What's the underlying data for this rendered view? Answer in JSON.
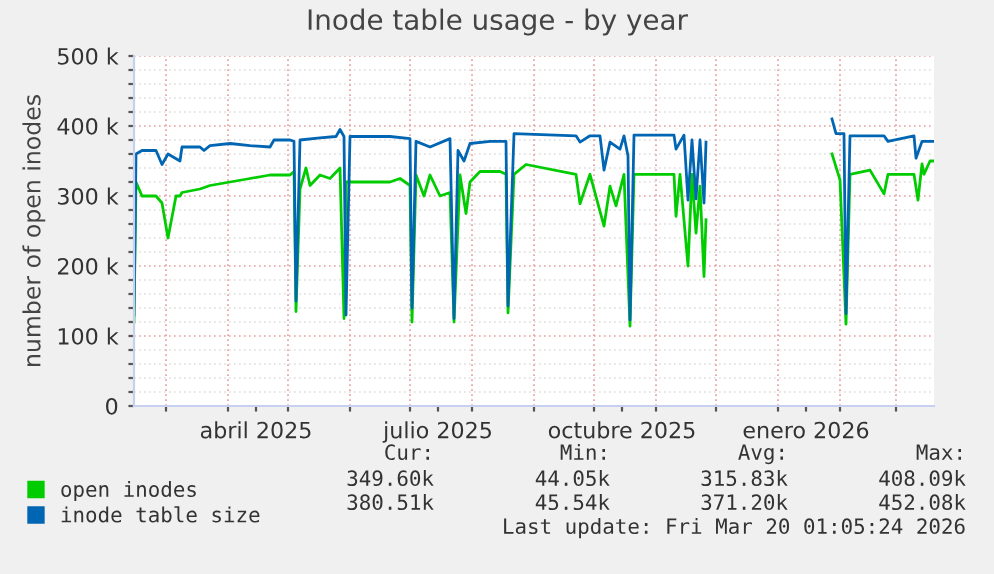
{
  "chart_data": {
    "type": "line",
    "title": "Inode table usage - by year",
    "ylabel": "number of open inodes",
    "xlim": [
      "2025-02-13",
      "2026-03-20"
    ],
    "xticks": [
      {
        "value": "2025-03-01",
        "label": null
      },
      {
        "value": "2025-04-01",
        "label": null
      },
      {
        "value": "2025-04-15",
        "label": "abril 2025"
      },
      {
        "value": "2025-05-01",
        "label": null
      },
      {
        "value": "2025-06-01",
        "label": null
      },
      {
        "value": "2025-07-01",
        "label": null
      },
      {
        "value": "2025-07-15",
        "label": "julio 2025"
      },
      {
        "value": "2025-08-01",
        "label": null
      },
      {
        "value": "2025-09-01",
        "label": null
      },
      {
        "value": "2025-10-01",
        "label": null
      },
      {
        "value": "2025-10-15",
        "label": "octubre 2025"
      },
      {
        "value": "2025-11-01",
        "label": null
      },
      {
        "value": "2025-12-01",
        "label": null
      },
      {
        "value": "2026-01-01",
        "label": null
      },
      {
        "value": "2026-01-15",
        "label": "enero 2026"
      },
      {
        "value": "2026-02-01",
        "label": null
      },
      {
        "value": "2026-03-01",
        "label": null
      }
    ],
    "ylim": [
      0,
      500000
    ],
    "yticks": [
      0,
      {
        "value": 20000,
        "label": null
      },
      {
        "value": 40000,
        "label": null
      },
      {
        "value": 60000,
        "label": null
      },
      {
        "value": 80000,
        "label": null
      },
      {
        "value": 100000,
        "label": "100 k"
      },
      {
        "value": 120000,
        "label": null
      },
      {
        "value": 140000,
        "label": null
      },
      {
        "value": 160000,
        "label": null
      },
      {
        "value": 180000,
        "label": null
      },
      {
        "value": 200000,
        "label": "200 k"
      },
      {
        "value": 220000,
        "label": null
      },
      {
        "value": 240000,
        "label": null
      },
      {
        "value": 260000,
        "label": null
      },
      {
        "value": 280000,
        "label": null
      },
      {
        "value": 300000,
        "label": "300 k"
      },
      {
        "value": 320000,
        "label": null
      },
      {
        "value": 340000,
        "label": null
      },
      {
        "value": 360000,
        "label": null
      },
      {
        "value": 380000,
        "label": null
      },
      {
        "value": 400000,
        "label": "400 k"
      },
      {
        "value": 420000,
        "label": null
      },
      {
        "value": 440000,
        "label": null
      },
      {
        "value": 460000,
        "label": null
      },
      {
        "value": 480000,
        "label": null
      },
      {
        "value": 500000,
        "label": "500 k"
      }
    ],
    "grid": true,
    "legend": "bottom",
    "marker": "none",
    "line_style": "solid",
    "series": [
      {
        "name": "open inodes",
        "color": "#00cc00",
        "x": [
          "2025-02-13",
          "2025-02-14",
          "2025-02-17",
          "2025-02-24",
          "2025-02-27",
          "2025-03-02",
          "2025-03-06",
          "2025-03-08",
          "2025-03-09",
          "2025-03-18",
          "2025-03-23",
          "2025-04-02",
          "2025-04-12",
          "2025-04-22",
          "2025-04-24",
          "2025-05-02",
          "2025-05-04",
          "2025-05-05",
          "2025-05-07",
          "2025-05-10",
          "2025-05-12",
          "2025-05-17",
          "2025-05-22",
          "2025-05-27",
          "2025-05-29",
          "2025-05-30",
          "2025-06-01",
          "2025-06-11",
          "2025-06-21",
          "2025-06-26",
          "2025-07-01",
          "2025-07-02",
          "2025-07-04",
          "2025-07-08",
          "2025-07-11",
          "2025-07-16",
          "2025-07-21",
          "2025-07-23",
          "2025-07-26",
          "2025-07-29",
          "2025-07-31",
          "2025-08-05",
          "2025-08-15",
          "2025-08-18",
          "2025-08-19",
          "2025-08-22",
          "2025-08-28",
          "2025-09-22",
          "2025-09-24",
          "2025-09-29",
          "2025-10-06",
          "2025-10-09",
          "2025-10-12",
          "2025-10-16",
          "2025-10-19",
          "2025-10-21",
          "2025-11-10",
          "2025-11-11",
          "2025-11-13",
          "2025-11-17",
          "2025-11-19",
          "2025-11-21",
          "2025-11-23",
          "2025-11-25",
          "2025-11-26",
          "2025-12-28",
          "2026-01-28",
          "2026-02-01",
          "2026-02-04",
          "2026-02-06",
          "2026-02-16",
          "2026-02-23",
          "2026-02-25",
          "2026-03-10",
          "2026-03-12",
          "2026-03-14",
          "2026-03-15",
          "2026-03-18",
          "2026-03-20"
        ],
        "values": [
          120000,
          320000,
          300000,
          300000,
          290000,
          240000,
          300000,
          300000,
          305000,
          310000,
          315000,
          320000,
          325000,
          330000,
          330000,
          330000,
          335000,
          135000,
          310000,
          340000,
          315000,
          330000,
          325000,
          340000,
          125000,
          320000,
          320000,
          320000,
          320000,
          325000,
          315000,
          120000,
          330000,
          300000,
          330000,
          300000,
          305000,
          120000,
          330000,
          275000,
          320000,
          335000,
          335000,
          331000,
          133000,
          331000,
          345000,
          331000,
          289000,
          331000,
          257000,
          314000,
          286000,
          331000,
          114000,
          331000,
          331000,
          271000,
          331000,
          200000,
          331000,
          247000,
          314000,
          185000,
          266000,
          null,
          360000,
          323000,
          117000,
          331000,
          337000,
          303000,
          331000,
          331000,
          294000,
          346000,
          331000,
          350000,
          350000
        ]
      },
      {
        "name": "inode table size",
        "color": "#0066b3",
        "x": [
          "2025-02-13",
          "2025-02-14",
          "2025-02-17",
          "2025-02-24",
          "2025-02-27",
          "2025-03-02",
          "2025-03-08",
          "2025-03-09",
          "2025-03-18",
          "2025-03-20",
          "2025-03-23",
          "2025-04-02",
          "2025-04-12",
          "2025-04-22",
          "2025-04-24",
          "2025-05-02",
          "2025-05-04",
          "2025-05-05",
          "2025-05-07",
          "2025-05-17",
          "2025-05-25",
          "2025-05-27",
          "2025-05-29",
          "2025-05-30",
          "2025-06-01",
          "2025-06-21",
          "2025-07-01",
          "2025-07-02",
          "2025-07-04",
          "2025-07-11",
          "2025-07-21",
          "2025-07-23",
          "2025-07-25",
          "2025-07-28",
          "2025-07-31",
          "2025-08-10",
          "2025-08-18",
          "2025-08-19",
          "2025-08-22",
          "2025-09-22",
          "2025-09-24",
          "2025-09-29",
          "2025-10-04",
          "2025-10-06",
          "2025-10-09",
          "2025-10-14",
          "2025-10-16",
          "2025-10-18",
          "2025-10-19",
          "2025-10-21",
          "2025-11-10",
          "2025-11-11",
          "2025-11-15",
          "2025-11-17",
          "2025-11-19",
          "2025-11-21",
          "2025-11-23",
          "2025-11-25",
          "2025-11-26",
          "2025-12-28",
          "2026-01-28",
          "2026-01-30",
          "2026-02-03",
          "2026-02-04",
          "2026-02-06",
          "2026-02-23",
          "2026-02-25",
          "2026-03-10",
          "2026-03-11",
          "2026-03-14",
          "2026-03-20"
        ],
        "values": [
          130000,
          360000,
          365000,
          365000,
          345000,
          360000,
          350000,
          370000,
          370000,
          365000,
          372000,
          375000,
          372000,
          370000,
          380000,
          380000,
          378000,
          150000,
          380000,
          383000,
          385000,
          395000,
          385000,
          130000,
          385000,
          385000,
          382000,
          140000,
          378000,
          370000,
          382000,
          125000,
          365000,
          350000,
          375000,
          378000,
          378000,
          143000,
          389000,
          386000,
          377000,
          386000,
          386000,
          337000,
          377000,
          367000,
          386000,
          357000,
          123000,
          387000,
          387000,
          367000,
          387000,
          294000,
          380000,
          296000,
          380000,
          290000,
          377000,
          null,
          410000,
          389000,
          389000,
          132000,
          386000,
          386000,
          378000,
          386000,
          354000,
          378000,
          378000
        ]
      }
    ],
    "annotations": [
      "Cur:",
      "Min:",
      "Avg:",
      "Max:",
      "349.60k",
      "44.05k",
      "315.83k",
      "408.09k",
      "380.51k",
      "45.54k",
      "371.20k",
      "452.08k",
      "Last update: Fri Mar 20 01:05:24 2026"
    ]
  }
}
